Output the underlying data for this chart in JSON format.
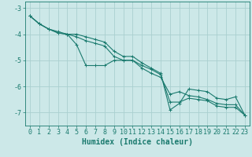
{
  "xlabel": "Humidex (Indice chaleur)",
  "ylabel": "",
  "x": [
    0,
    1,
    2,
    3,
    4,
    5,
    6,
    7,
    8,
    9,
    10,
    11,
    12,
    13,
    14,
    15,
    16,
    17,
    18,
    19,
    20,
    21,
    22,
    23
  ],
  "y_line1": [
    -3.3,
    -3.6,
    -3.8,
    -3.9,
    -4.0,
    -4.4,
    -5.2,
    -5.2,
    -5.2,
    -5.0,
    -5.0,
    -5.0,
    -5.2,
    -5.35,
    -5.55,
    -6.6,
    -6.6,
    -6.45,
    -6.5,
    -6.55,
    -6.75,
    -6.8,
    -6.8,
    -7.1
  ],
  "y_line2": [
    -3.3,
    -3.6,
    -3.8,
    -3.95,
    -4.0,
    -4.1,
    -4.25,
    -4.35,
    -4.45,
    -4.85,
    -5.0,
    -5.0,
    -5.3,
    -5.5,
    -5.65,
    -6.3,
    -6.2,
    -6.35,
    -6.4,
    -6.5,
    -6.65,
    -6.7,
    -6.7,
    -7.1
  ],
  "y_line3": [
    -3.3,
    -3.6,
    -3.8,
    -3.95,
    -4.0,
    -4.0,
    -4.1,
    -4.2,
    -4.3,
    -4.65,
    -4.85,
    -4.85,
    -5.1,
    -5.3,
    -5.5,
    -6.9,
    -6.65,
    -6.1,
    -6.15,
    -6.2,
    -6.45,
    -6.5,
    -6.4,
    -7.1
  ],
  "line_color": "#1a7a6e",
  "bg_color": "#cce8e8",
  "grid_color": "#aad0d0",
  "xlim": [
    -0.5,
    23.5
  ],
  "ylim": [
    -7.5,
    -2.75
  ],
  "yticks": [
    -7,
    -6,
    -5,
    -4,
    -3
  ],
  "xticks": [
    0,
    1,
    2,
    3,
    4,
    5,
    6,
    7,
    8,
    9,
    10,
    11,
    12,
    13,
    14,
    15,
    16,
    17,
    18,
    19,
    20,
    21,
    22,
    23
  ],
  "marker": "+",
  "markersize": 3,
  "linewidth": 0.8,
  "xlabel_fontsize": 7,
  "tick_fontsize": 6
}
